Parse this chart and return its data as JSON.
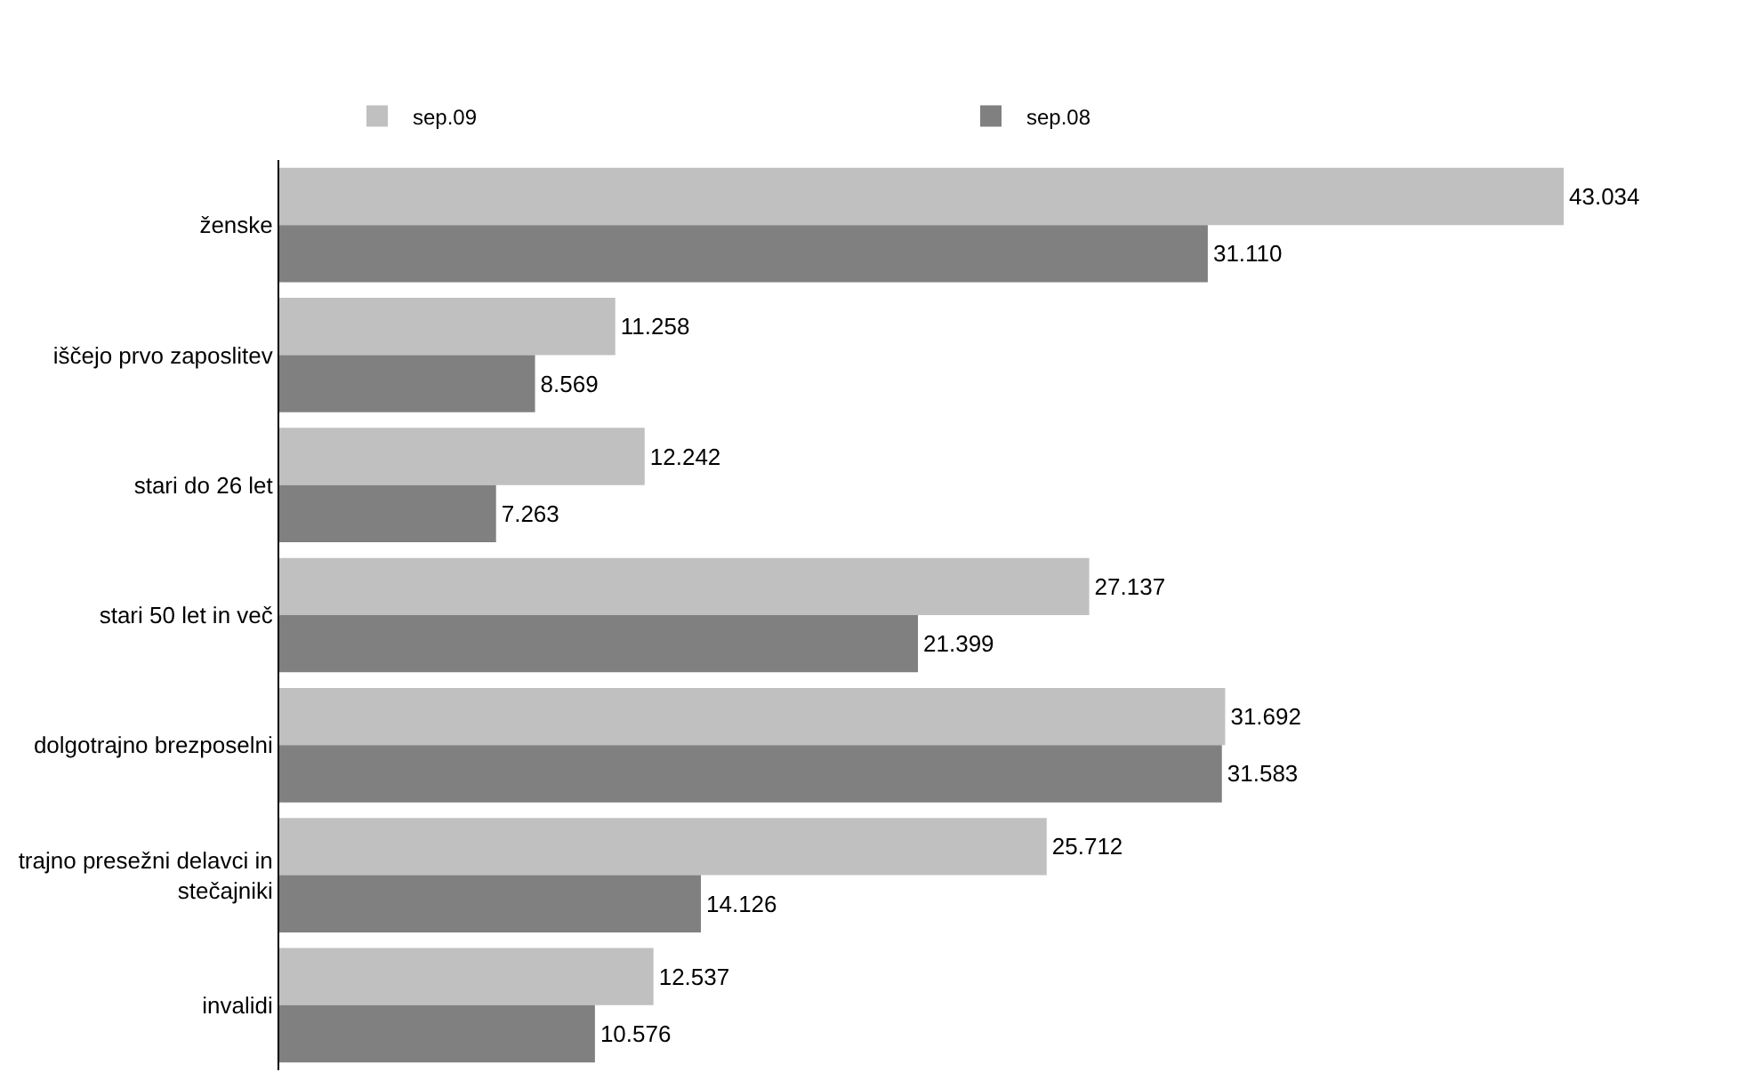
{
  "chart_data": {
    "type": "bar",
    "orientation": "horizontal",
    "legend": "top",
    "categories": [
      "ženske",
      "iščejo prvo zaposlitev",
      "stari do 26 let",
      "stari 50 let in več",
      "dolgotrajno brezposelni",
      "trajno presežni delavci in\nstečajniki",
      "invalidi"
    ],
    "series": [
      {
        "name": "sep.09",
        "color": "#c0c0c0",
        "values": [
          43034,
          11258,
          12242,
          27137,
          31692,
          25712,
          12537
        ],
        "value_labels": [
          "43.034",
          "11.258",
          "12.242",
          "27.137",
          "31.692",
          "25.712",
          "12.537"
        ]
      },
      {
        "name": "sep.08",
        "color": "#808080",
        "values": [
          31110,
          8569,
          7263,
          21399,
          31583,
          14126,
          10576
        ],
        "value_labels": [
          "31.110",
          "8.569",
          "7.263",
          "21.399",
          "31.583",
          "14.126",
          "10.576"
        ]
      }
    ]
  }
}
